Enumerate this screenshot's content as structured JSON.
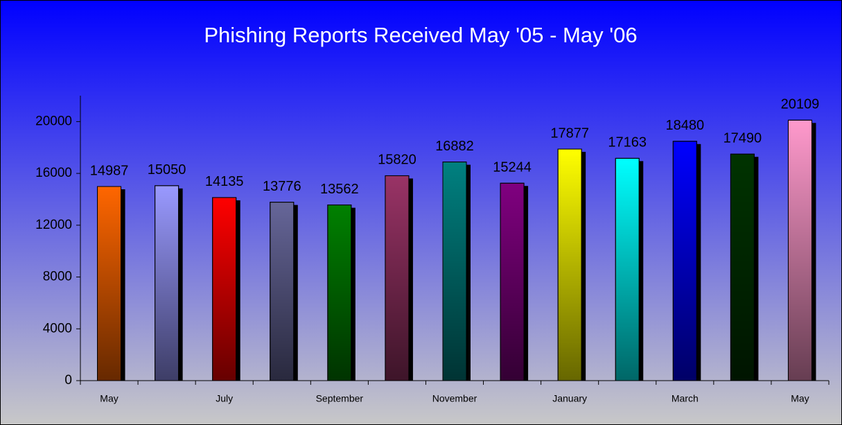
{
  "chart_data": {
    "type": "bar",
    "title": "Phishing Reports Received May '05 - May '06",
    "categories": [
      "May",
      null,
      "July",
      null,
      "September",
      null,
      "November",
      null,
      "January",
      null,
      "March",
      null,
      "May"
    ],
    "values": [
      14987,
      15050,
      14135,
      13776,
      13562,
      15820,
      16882,
      15244,
      17877,
      17163,
      18480,
      17490,
      20109
    ],
    "colors": [
      "#ff6600",
      "#9999ff",
      "#ff0000",
      "#666699",
      "#008000",
      "#993366",
      "#008080",
      "#800080",
      "#ffff00",
      "#00ffff",
      "#0000ff",
      "#003300",
      "#ff99cc"
    ],
    "ylim": [
      0,
      22000
    ],
    "yticks": [
      0,
      4000,
      8000,
      12000,
      16000,
      20000
    ],
    "grid": false
  }
}
